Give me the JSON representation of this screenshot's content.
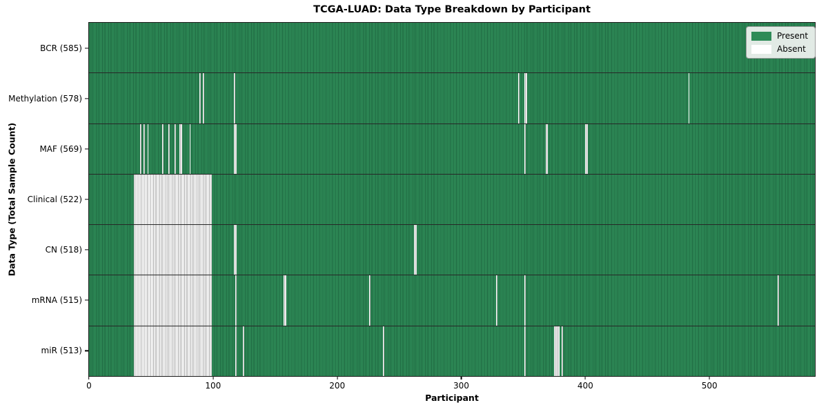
{
  "chart_data": {
    "type": "heatmap",
    "title": "TCGA-LUAD: Data Type Breakdown by Participant",
    "xlabel": "Participant",
    "ylabel": "Data Type (Total Sample Count)",
    "x_max": 585,
    "x_ticks": [
      "0",
      "100",
      "200",
      "300",
      "400",
      "500"
    ],
    "x_tick_values": [
      0,
      100,
      200,
      300,
      400,
      500
    ],
    "grid": false,
    "legend_position": "upper right",
    "colors": {
      "present": "#2e8b57",
      "present_edge": "#1e6740",
      "absent": "#ffffff",
      "absent_edge": "#ababab",
      "row_separator": "#262626"
    },
    "legend": [
      {
        "label": "Present",
        "color": "#2e8b57"
      },
      {
        "label": "Absent",
        "color": "#ffffff"
      }
    ],
    "rows": [
      {
        "label": "BCR (585)",
        "data_type": "BCR",
        "present_count": 585,
        "absent_count": 0,
        "absent_ranges": []
      },
      {
        "label": "Methylation (578)",
        "data_type": "Methylation",
        "present_count": 578,
        "absent_count": 7,
        "absent_ranges": [
          [
            89,
            89
          ],
          [
            92,
            92
          ],
          [
            117,
            117
          ],
          [
            346,
            346
          ],
          [
            351,
            352
          ],
          [
            483,
            483
          ]
        ]
      },
      {
        "label": "MAF (569)",
        "data_type": "MAF",
        "present_count": 569,
        "absent_count": 16,
        "absent_ranges": [
          [
            41,
            41
          ],
          [
            44,
            44
          ],
          [
            47,
            47
          ],
          [
            59,
            59
          ],
          [
            64,
            64
          ],
          [
            69,
            69
          ],
          [
            73,
            74
          ],
          [
            81,
            81
          ],
          [
            117,
            118
          ],
          [
            351,
            351
          ],
          [
            368,
            369
          ],
          [
            400,
            401
          ]
        ]
      },
      {
        "label": "Clinical (522)",
        "data_type": "Clinical",
        "present_count": 522,
        "absent_count": 63,
        "absent_ranges": [
          [
            36,
            98
          ]
        ]
      },
      {
        "label": "CN (518)",
        "data_type": "CN",
        "present_count": 518,
        "absent_count": 67,
        "absent_ranges": [
          [
            36,
            98
          ],
          [
            117,
            118
          ],
          [
            262,
            263
          ]
        ]
      },
      {
        "label": "mRNA (515)",
        "data_type": "mRNA",
        "present_count": 515,
        "absent_count": 70,
        "absent_ranges": [
          [
            36,
            98
          ],
          [
            118,
            118
          ],
          [
            157,
            158
          ],
          [
            226,
            226
          ],
          [
            328,
            328
          ],
          [
            351,
            351
          ],
          [
            555,
            555
          ]
        ]
      },
      {
        "label": "miR (513)",
        "data_type": "miR",
        "present_count": 513,
        "absent_count": 72,
        "absent_ranges": [
          [
            36,
            98
          ],
          [
            118,
            118
          ],
          [
            124,
            124
          ],
          [
            237,
            237
          ],
          [
            351,
            351
          ],
          [
            375,
            378
          ],
          [
            381,
            381
          ]
        ]
      }
    ]
  }
}
